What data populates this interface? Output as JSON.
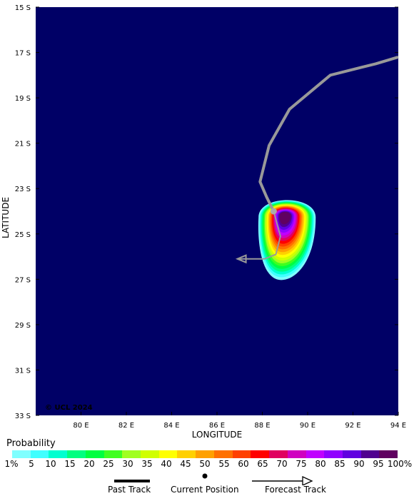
{
  "map": {
    "lon_range": [
      78,
      94
    ],
    "lat_range": [
      -33,
      -15
    ],
    "background_color": "#000066",
    "axis_title_x": "LONGITUDE",
    "axis_title_y": "LATITUDE",
    "watermark": "© UCL 2024",
    "lon_ticks": [
      {
        "value": 80,
        "label": "80 E"
      },
      {
        "value": 82,
        "label": "82 E"
      },
      {
        "value": 84,
        "label": "84 E"
      },
      {
        "value": 86,
        "label": "86 E"
      },
      {
        "value": 88,
        "label": "88 E"
      },
      {
        "value": 90,
        "label": "90 E"
      },
      {
        "value": 92,
        "label": "92 E"
      },
      {
        "value": 94,
        "label": "94 E"
      }
    ],
    "lat_ticks": [
      {
        "value": -15,
        "label": "15 S"
      },
      {
        "value": -17,
        "label": "17 S"
      },
      {
        "value": -19,
        "label": "19 S"
      },
      {
        "value": -21,
        "label": "21 S"
      },
      {
        "value": -23,
        "label": "23 S"
      },
      {
        "value": -25,
        "label": "25 S"
      },
      {
        "value": -27,
        "label": "27 S"
      },
      {
        "value": -29,
        "label": "29 S"
      },
      {
        "value": -31,
        "label": "31 S"
      },
      {
        "value": -33,
        "label": "33 S"
      }
    ]
  },
  "storm": {
    "past_track": [
      [
        94.0,
        -17.2
      ],
      [
        93.0,
        -17.5
      ],
      [
        91.0,
        -18.0
      ],
      [
        89.2,
        -19.5
      ],
      [
        88.3,
        -21.1
      ],
      [
        87.9,
        -22.7
      ],
      [
        88.2,
        -23.4
      ],
      [
        88.5,
        -24.0
      ]
    ],
    "current_position": [
      88.5,
      -24.0
    ],
    "forecast_track": [
      [
        88.5,
        -24.0
      ],
      [
        88.8,
        -25.1
      ],
      [
        88.6,
        -25.9
      ],
      [
        88.1,
        -26.1
      ],
      [
        86.9,
        -26.1
      ]
    ],
    "track_color": "#999999",
    "probability_field": {
      "center": [
        89.0,
        -24.2
      ],
      "note_levels": "filled contours from 1% to 100%"
    }
  },
  "legend": {
    "probability_title": "Probability",
    "levels": [
      "1%",
      "5",
      "10",
      "15",
      "20",
      "25",
      "30",
      "35",
      "40",
      "45",
      "50",
      "55",
      "60",
      "65",
      "70",
      "75",
      "80",
      "85",
      "90",
      "95",
      "100%"
    ],
    "colors": [
      "#80ffff",
      "#40ffff",
      "#00ffd0",
      "#00ff80",
      "#00ff40",
      "#40ff20",
      "#a0ff20",
      "#d0ff00",
      "#ffff00",
      "#ffd000",
      "#ffa000",
      "#ff7000",
      "#ff4000",
      "#ff0000",
      "#e00060",
      "#d000c0",
      "#c000ff",
      "#9000ff",
      "#6000e0",
      "#500090",
      "#600060"
    ],
    "past_track_label": "Past Track",
    "current_position_label": "Current Position",
    "forecast_track_label": "Forecast Track"
  }
}
